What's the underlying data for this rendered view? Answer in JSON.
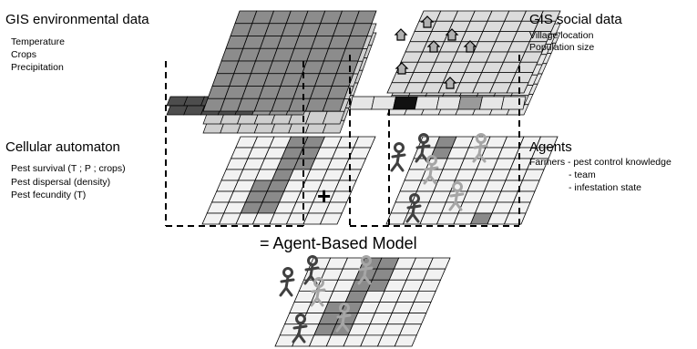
{
  "gis_environmental": {
    "title": "GIS environmental data",
    "items": [
      "Temperature",
      "Crops",
      "Precipitation"
    ]
  },
  "gis_social": {
    "title": "GIS social data",
    "items": [
      "Village location",
      "Population size"
    ]
  },
  "cellular_automaton": {
    "title": "Cellular automaton",
    "items": [
      "Pest survival (T ; P ; crops)",
      "Pest dispersal (density)",
      "Pest fecundity (T)"
    ]
  },
  "agents": {
    "title": "Agents",
    "items": [
      "Farmers - pest control knowledge",
      "- team",
      "- infestation state"
    ]
  },
  "operator_plus": "+",
  "result": "= Agent-Based Model",
  "colors": {
    "grid_line": "#000000",
    "cell_light": "#f2f2f2",
    "env_layer_top": "#8c8c8c",
    "env_layer_dark": "#4d4d4d",
    "pest_cell": "#8a8a8a",
    "social_layer": "#dcdcdc",
    "village_marker": "#000000",
    "agent_dark": "#404040",
    "agent_light": "#a6a6a6"
  }
}
